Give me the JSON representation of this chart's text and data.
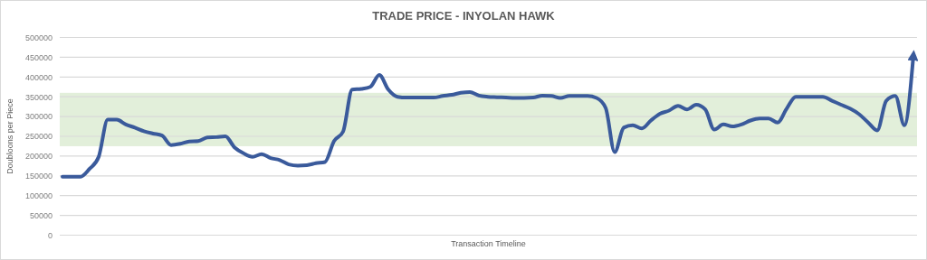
{
  "chart_data": {
    "type": "line",
    "title": "TRADE PRICE - INYOLAN HAWK",
    "xlabel": "Transaction Timeline",
    "ylabel": "Doubloons per Piece",
    "categories": [
      null,
      null,
      null,
      null,
      null,
      null,
      null,
      null,
      null,
      null,
      null,
      null,
      null,
      null,
      null,
      null,
      null,
      null,
      null,
      null,
      null,
      null,
      null,
      null,
      null,
      null,
      null,
      null,
      null,
      null,
      null,
      null,
      null,
      null,
      null,
      null,
      null,
      null,
      null,
      null,
      null,
      null,
      null,
      null,
      null,
      null,
      null,
      null,
      null,
      null,
      null,
      null,
      null,
      null,
      null,
      null,
      null,
      null,
      null,
      null,
      null,
      null,
      null,
      null,
      null,
      null,
      null,
      null,
      null,
      null,
      null,
      null,
      null,
      null,
      null,
      null,
      null,
      null,
      null,
      null,
      null,
      null,
      null,
      null,
      null,
      null,
      null,
      null,
      null,
      null,
      null,
      null,
      null,
      null,
      null
    ],
    "series": [
      {
        "color": "#3a5a9b",
        "values": [
          148000,
          148000,
          148000,
          168000,
          198000,
          292000,
          292000,
          280000,
          272000,
          263000,
          257000,
          252000,
          228000,
          231000,
          237000,
          238000,
          247000,
          248000,
          250000,
          222000,
          207000,
          198000,
          205000,
          195000,
          190000,
          179000,
          176000,
          177000,
          182000,
          185000,
          238000,
          262000,
          368000,
          370000,
          375000,
          405000,
          368000,
          350000,
          348000,
          348000,
          348000,
          348000,
          352000,
          355000,
          360000,
          362000,
          353000,
          350000,
          349000,
          348000,
          347000,
          347000,
          348000,
          353000,
          352000,
          347000,
          352000,
          352000,
          352000,
          347000,
          322000,
          210000,
          272000,
          278000,
          270000,
          290000,
          307000,
          315000,
          327000,
          318000,
          330000,
          318000,
          267000,
          280000,
          275000,
          280000,
          290000,
          295000,
          295000,
          285000,
          320000,
          350000,
          350000,
          350000,
          350000,
          340000,
          330000,
          320000,
          306000,
          285000,
          265000,
          340000,
          352000,
          278000,
          455000
        ]
      }
    ],
    "ylim": [
      0,
      500000
    ],
    "yticks": [
      0,
      50000,
      100000,
      150000,
      200000,
      250000,
      300000,
      350000,
      400000,
      450000,
      500000
    ],
    "grid": "y",
    "tick_labels": "y",
    "marker": "none",
    "line_style": "solid",
    "bands": [
      {
        "axis": "y",
        "from": 225000,
        "to": 360000,
        "color": "#e2efda"
      }
    ]
  }
}
